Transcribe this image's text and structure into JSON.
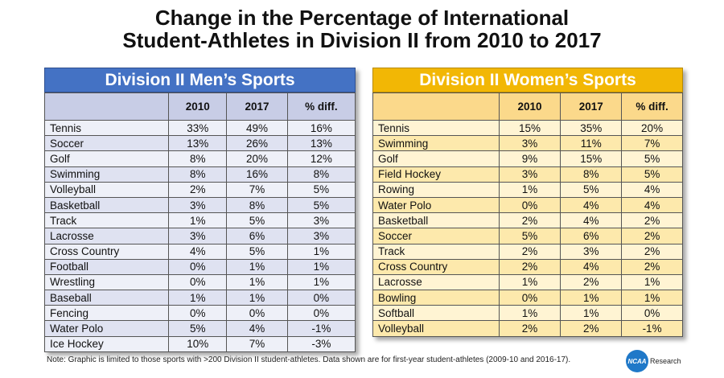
{
  "title_line1": "Change in the Percentage of International",
  "title_line2": "Student-Athletes in Division II from 2010 to 2017",
  "chart_data": [
    {
      "type": "table",
      "title": "Division II Men’s Sports",
      "columns": [
        "",
        "2010",
        "2017",
        "% diff."
      ],
      "rows": [
        [
          "Tennis",
          "33%",
          "49%",
          "16%"
        ],
        [
          "Soccer",
          "13%",
          "26%",
          "13%"
        ],
        [
          "Golf",
          "8%",
          "20%",
          "12%"
        ],
        [
          "Swimming",
          "8%",
          "16%",
          "8%"
        ],
        [
          "Volleyball",
          "2%",
          "7%",
          "5%"
        ],
        [
          "Basketball",
          "3%",
          "8%",
          "5%"
        ],
        [
          "Track",
          "1%",
          "5%",
          "3%"
        ],
        [
          "Lacrosse",
          "3%",
          "6%",
          "3%"
        ],
        [
          "Cross Country",
          "4%",
          "5%",
          "1%"
        ],
        [
          "Football",
          "0%",
          "1%",
          "1%"
        ],
        [
          "Wrestling",
          "0%",
          "1%",
          "1%"
        ],
        [
          "Baseball",
          "1%",
          "1%",
          "0%"
        ],
        [
          "Fencing",
          "0%",
          "0%",
          "0%"
        ],
        [
          "Water Polo",
          "5%",
          "4%",
          "-1%"
        ],
        [
          "Ice Hockey",
          "10%",
          "7%",
          "-3%"
        ]
      ],
      "header_color": "#4472c4"
    },
    {
      "type": "table",
      "title": "Division II Women’s Sports",
      "columns": [
        "",
        "2010",
        "2017",
        "% diff."
      ],
      "rows": [
        [
          "Tennis",
          "15%",
          "35%",
          "20%"
        ],
        [
          "Swimming",
          "3%",
          "11%",
          "7%"
        ],
        [
          "Golf",
          "9%",
          "15%",
          "5%"
        ],
        [
          "Field Hockey",
          "3%",
          "8%",
          "5%"
        ],
        [
          "Rowing",
          "1%",
          "5%",
          "4%"
        ],
        [
          "Water Polo",
          "0%",
          "4%",
          "4%"
        ],
        [
          "Basketball",
          "2%",
          "4%",
          "2%"
        ],
        [
          "Soccer",
          "5%",
          "6%",
          "2%"
        ],
        [
          "Track",
          "2%",
          "3%",
          "2%"
        ],
        [
          "Cross Country",
          "2%",
          "4%",
          "2%"
        ],
        [
          "Lacrosse",
          "1%",
          "2%",
          "1%"
        ],
        [
          "Bowling",
          "0%",
          "1%",
          "1%"
        ],
        [
          "Softball",
          "1%",
          "1%",
          "0%"
        ],
        [
          "Volleyball",
          "2%",
          "2%",
          "-1%"
        ]
      ],
      "header_color": "#f2b705"
    }
  ],
  "note": "Note: Graphic is limited to those sports with >200 Division II student-athletes. Data shown are for first-year student-athletes (2009-10 and 2016-17).",
  "logo": {
    "mark": "NCAA",
    "text": "Research"
  }
}
